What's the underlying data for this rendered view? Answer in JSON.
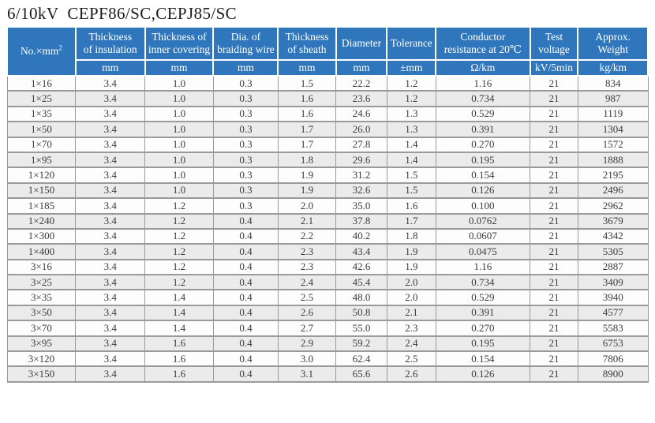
{
  "title": "6/10kV  CEPF86/SC,CEPJ85/SC",
  "colors": {
    "header_bg": "#2F76BC",
    "header_text": "#FFFFFF",
    "stripe": "#EBEBEB",
    "border": "#9A9A9A",
    "body_text": "#3C3C3C"
  },
  "table": {
    "columns": [
      {
        "line1": "No.×mm",
        "sup": "2",
        "line2": ""
      },
      {
        "line1": "Thickness",
        "line2": "of insulation"
      },
      {
        "line1": "Thickness of",
        "line2": "inner covering"
      },
      {
        "line1": "Dia. of",
        "line2": "braiding wire"
      },
      {
        "line1": "Thickness",
        "line2": "of sheath"
      },
      {
        "line1": "Diameter",
        "line2": ""
      },
      {
        "line1": "Tolerance",
        "line2": ""
      },
      {
        "line1": "Conductor",
        "line2": "resistance at 20℃"
      },
      {
        "line1": "Test",
        "line2": "voltage"
      },
      {
        "line1": "Approx.",
        "line2": "Weight"
      }
    ],
    "units": [
      "mm",
      "mm",
      "mm",
      "mm",
      "mm",
      "±mm",
      "Ω/km",
      "kV/5min",
      "kg/km"
    ],
    "rows": [
      [
        "1×16",
        "3.4",
        "1.0",
        "0.3",
        "1.5",
        "22.2",
        "1.2",
        "1.16",
        "21",
        "834"
      ],
      [
        "1×25",
        "3.4",
        "1.0",
        "0.3",
        "1.6",
        "23.6",
        "1.2",
        "0.734",
        "21",
        "987"
      ],
      [
        "1×35",
        "3.4",
        "1.0",
        "0.3",
        "1.6",
        "24.6",
        "1.3",
        "0.529",
        "21",
        "1119"
      ],
      [
        "1×50",
        "3.4",
        "1.0",
        "0.3",
        "1.7",
        "26.0",
        "1.3",
        "0.391",
        "21",
        "1304"
      ],
      [
        "1×70",
        "3.4",
        "1.0",
        "0.3",
        "1.7",
        "27.8",
        "1.4",
        "0.270",
        "21",
        "1572"
      ],
      [
        "1×95",
        "3.4",
        "1.0",
        "0.3",
        "1.8",
        "29.6",
        "1.4",
        "0.195",
        "21",
        "1888"
      ],
      [
        "1×120",
        "3.4",
        "1.0",
        "0.3",
        "1.9",
        "31.2",
        "1.5",
        "0.154",
        "21",
        "2195"
      ],
      [
        "1×150",
        "3.4",
        "1.0",
        "0.3",
        "1.9",
        "32.6",
        "1.5",
        "0.126",
        "21",
        "2496"
      ],
      [
        "1×185",
        "3.4",
        "1.2",
        "0.3",
        "2.0",
        "35.0",
        "1.6",
        "0.100",
        "21",
        "2962"
      ],
      [
        "1×240",
        "3.4",
        "1.2",
        "0.4",
        "2.1",
        "37.8",
        "1.7",
        "0.0762",
        "21",
        "3679"
      ],
      [
        "1×300",
        "3.4",
        "1.2",
        "0.4",
        "2.2",
        "40.2",
        "1.8",
        "0.0607",
        "21",
        "4342"
      ],
      [
        "1×400",
        "3.4",
        "1.2",
        "0.4",
        "2.3",
        "43.4",
        "1.9",
        "0.0475",
        "21",
        "5305"
      ],
      [
        "3×16",
        "3.4",
        "1.2",
        "0.4",
        "2.3",
        "42.6",
        "1.9",
        "1.16",
        "21",
        "2887"
      ],
      [
        "3×25",
        "3.4",
        "1.2",
        "0.4",
        "2.4",
        "45.4",
        "2.0",
        "0.734",
        "21",
        "3409"
      ],
      [
        "3×35",
        "3.4",
        "1.4",
        "0.4",
        "2.5",
        "48.0",
        "2.0",
        "0.529",
        "21",
        "3940"
      ],
      [
        "3×50",
        "3.4",
        "1.4",
        "0.4",
        "2.6",
        "50.8",
        "2.1",
        "0.391",
        "21",
        "4577"
      ],
      [
        "3×70",
        "3.4",
        "1.4",
        "0.4",
        "2.7",
        "55.0",
        "2.3",
        "0.270",
        "21",
        "5583"
      ],
      [
        "3×95",
        "3.4",
        "1.6",
        "0.4",
        "2.9",
        "59.2",
        "2.4",
        "0.195",
        "21",
        "6753"
      ],
      [
        "3×120",
        "3.4",
        "1.6",
        "0.4",
        "3.0",
        "62.4",
        "2.5",
        "0.154",
        "21",
        "7806"
      ],
      [
        "3×150",
        "3.4",
        "1.6",
        "0.4",
        "3.1",
        "65.6",
        "2.6",
        "0.126",
        "21",
        "8900"
      ]
    ]
  }
}
